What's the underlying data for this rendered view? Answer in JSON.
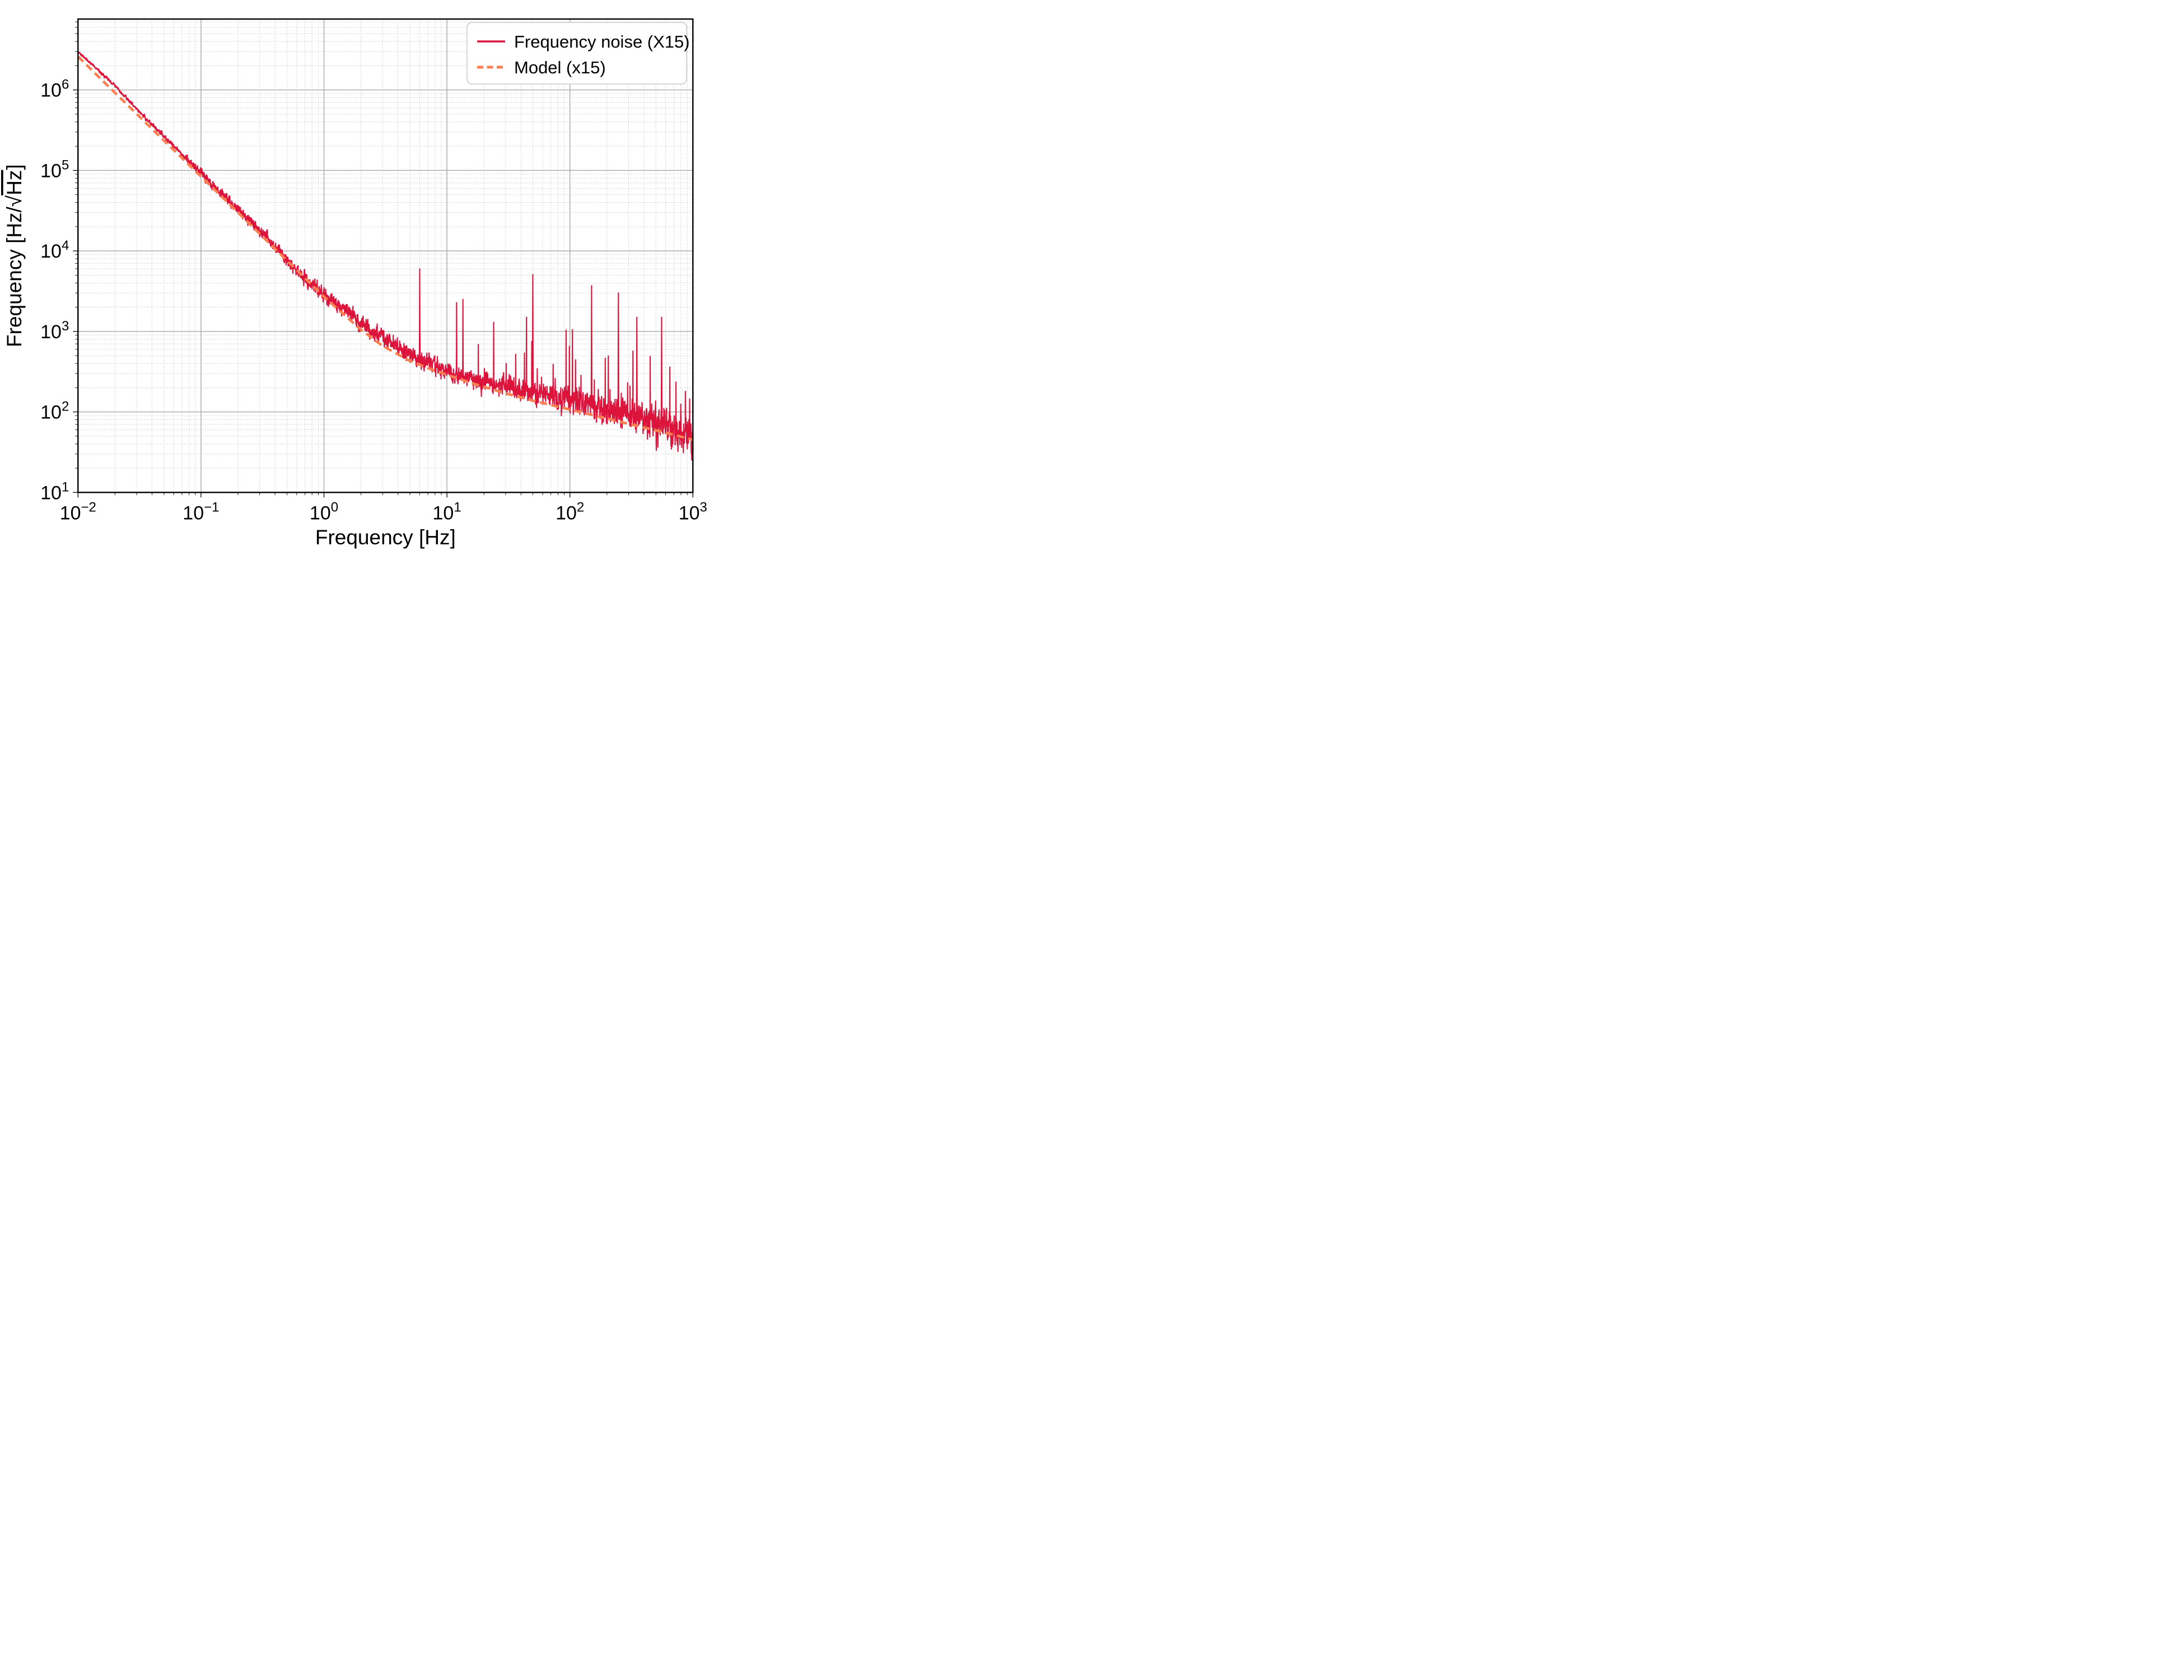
{
  "figure": {
    "background": "#ffffff",
    "description": "Log-log amplitude spectral density plot of laser frequency noise with model overlay"
  },
  "chart_data": {
    "type": "line",
    "title": "",
    "xlabel": "Frequency [Hz]",
    "ylabel": {
      "prefix": "Frequency [Hz/",
      "radical": "√",
      "radicand": "Hz",
      "suffix": "]"
    },
    "xscale": "log",
    "yscale": "log",
    "xlim": [
      0.01,
      1000
    ],
    "ylim": [
      10,
      7600000
    ],
    "grid": {
      "major": true,
      "minor": true,
      "major_color": "#a8a8a8",
      "minor_color": "#c9c9c9"
    },
    "axes_color": "#000000",
    "tick_base": "10",
    "x_tick_decades": [
      -2,
      -1,
      0,
      1,
      2,
      3
    ],
    "x_tick_labels": [
      "−2",
      "−1",
      "0",
      "1",
      "2",
      "3"
    ],
    "y_tick_decades": [
      1,
      2,
      3,
      4,
      5,
      6
    ],
    "y_tick_labels": [
      "1",
      "2",
      "3",
      "4",
      "5",
      "6"
    ],
    "legend": {
      "position": "upper right",
      "border_color": "#cccccc",
      "background": "#ffffff",
      "items": [
        {
          "label": "Frequency noise (X15)",
          "color": "#DC143C",
          "style": "solid"
        },
        {
          "label": "Model (x15)",
          "color": "#FF7F50",
          "style": "dashed"
        }
      ]
    },
    "series": [
      {
        "name": "Frequency noise (X15)",
        "color": "#DC143C",
        "style": "solid",
        "linewidth": 2.1,
        "baseline_anchors": [
          [
            0.01,
            3000000
          ],
          [
            0.015,
            1700000
          ],
          [
            0.02,
            1120000
          ],
          [
            0.03,
            580000
          ],
          [
            0.04,
            370000
          ],
          [
            0.05,
            265000
          ],
          [
            0.07,
            160000
          ],
          [
            0.085,
            118000
          ],
          [
            0.1,
            95000
          ],
          [
            0.12,
            68000
          ],
          [
            0.14,
            54000
          ],
          [
            0.16,
            47000
          ],
          [
            0.18,
            37000
          ],
          [
            0.2,
            33500
          ],
          [
            0.23,
            25500
          ],
          [
            0.26,
            23000
          ],
          [
            0.3,
            17200
          ],
          [
            0.34,
            15600
          ],
          [
            0.38,
            11200
          ],
          [
            0.42,
            10600
          ],
          [
            0.47,
            8200
          ],
          [
            0.52,
            7300
          ],
          [
            0.6,
            5700
          ],
          [
            0.7,
            4500
          ],
          [
            0.8,
            3800
          ],
          [
            0.9,
            3250
          ],
          [
            1.0,
            2900
          ],
          [
            1.3,
            2050
          ],
          [
            1.7,
            1550
          ],
          [
            2.2,
            1150
          ],
          [
            3,
            840
          ],
          [
            4,
            640
          ],
          [
            5,
            520
          ],
          [
            7,
            400
          ],
          [
            10,
            320
          ],
          [
            14,
            278
          ],
          [
            20,
            242
          ],
          [
            30,
            206
          ],
          [
            50,
            176
          ],
          [
            70,
            158
          ],
          [
            100,
            141
          ],
          [
            150,
            121
          ],
          [
            200,
            108
          ],
          [
            300,
            91
          ],
          [
            500,
            71
          ],
          [
            700,
            59
          ],
          [
            1000,
            47
          ]
        ],
        "peaks": [
          [
            6.0,
            6000
          ],
          [
            12.0,
            2280
          ],
          [
            13.5,
            2500
          ],
          [
            18,
            690
          ],
          [
            24,
            1300
          ],
          [
            30.3,
            400
          ],
          [
            36.3,
            520
          ],
          [
            42.7,
            540
          ],
          [
            44.3,
            1500
          ],
          [
            48.9,
            750
          ],
          [
            49.9,
            5100
          ],
          [
            54.3,
            345
          ],
          [
            73,
            390
          ],
          [
            76,
            260
          ],
          [
            93,
            1040
          ],
          [
            99,
            650
          ],
          [
            105,
            1050
          ],
          [
            111,
            445
          ],
          [
            123,
            285
          ],
          [
            150,
            3700
          ],
          [
            158,
            250
          ],
          [
            194,
            465
          ],
          [
            205,
            495
          ],
          [
            212,
            190
          ],
          [
            248,
            3000
          ],
          [
            295,
            230
          ],
          [
            308,
            210
          ],
          [
            325,
            570
          ],
          [
            350,
            1500
          ],
          [
            449,
            490
          ],
          [
            556,
            1500
          ],
          [
            649,
            360
          ],
          [
            728,
            235
          ],
          [
            796,
            125
          ],
          [
            870,
            180
          ],
          [
            940,
            145
          ]
        ],
        "scatter_sigma_dex": [
          [
            0.01,
            0.008
          ],
          [
            0.05,
            0.012
          ],
          [
            0.1,
            0.022
          ],
          [
            0.2,
            0.035
          ],
          [
            0.5,
            0.035
          ],
          [
            1,
            0.045
          ],
          [
            2,
            0.05
          ],
          [
            5,
            0.055
          ],
          [
            10,
            0.055
          ],
          [
            30,
            0.06
          ],
          [
            100,
            0.075
          ],
          [
            300,
            0.095
          ],
          [
            1000,
            0.125
          ]
        ]
      },
      {
        "name": "Model (x15)",
        "color": "#FF7F50",
        "style": "dashed",
        "linewidth": 4.6,
        "anchors": [
          [
            0.01,
            2600000
          ],
          [
            0.02,
            920000
          ],
          [
            0.05,
            235000
          ],
          [
            0.1,
            84000
          ],
          [
            0.2,
            30000
          ],
          [
            0.5,
            7600
          ],
          [
            1,
            2700
          ],
          [
            2,
            1050
          ],
          [
            3,
            660
          ],
          [
            5,
            430
          ],
          [
            7,
            350
          ],
          [
            10,
            290
          ],
          [
            15,
            235
          ],
          [
            20,
            205
          ],
          [
            30,
            170
          ],
          [
            50,
            138
          ],
          [
            70,
            122
          ],
          [
            100,
            107
          ],
          [
            150,
            92
          ],
          [
            200,
            83
          ],
          [
            300,
            71
          ],
          [
            500,
            59
          ],
          [
            700,
            52
          ],
          [
            1000,
            45
          ]
        ]
      }
    ]
  }
}
